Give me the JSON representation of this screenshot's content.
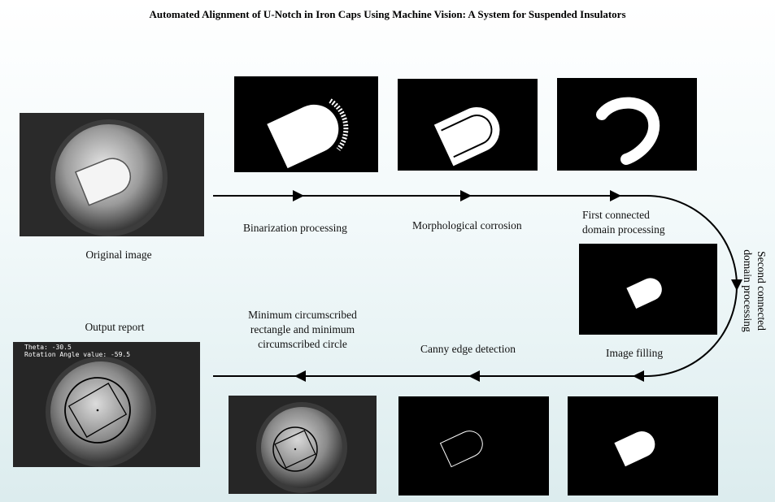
{
  "title": "Automated Alignment of U-Notch in Iron Caps Using Machine Vision: A System for Suspended Insulators",
  "labels": {
    "original": "Original image",
    "binarization": "Binarization processing",
    "morphological": "Morphological corrosion",
    "first_connected_1": "First connected",
    "first_connected_2": "domain processing",
    "second_connected_1": "Second connected",
    "second_connected_2": "domain processing",
    "image_filling": "Image filling",
    "canny": "Canny edge detection",
    "min_rect_1": "Minimum circumscribed",
    "min_rect_2": "rectangle and minimum",
    "min_rect_3": "circumscribed circle",
    "output_report": "Output report"
  },
  "overlay": {
    "theta": "Theta: -30.5",
    "rotation": "Rotation Angle value: -59.5"
  },
  "colors": {
    "panel_bg": "#000000",
    "shape": "#ffffff",
    "arrow": "#000000",
    "background_top": "#ffffff",
    "background_bottom": "#dcecee"
  }
}
